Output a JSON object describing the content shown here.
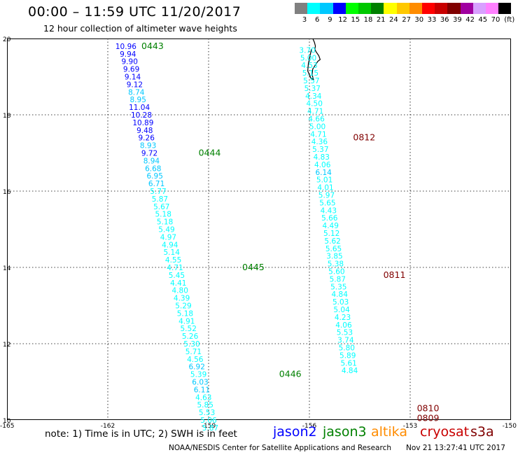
{
  "header": {
    "title": "00:00 – 11:59 UTC 11/20/2017",
    "subtitle": "12 hour collection of altimeter wave heights"
  },
  "color_scale": {
    "unit": "(ft)",
    "steps": [
      {
        "label": "3",
        "color": "#808080"
      },
      {
        "label": "6",
        "color": "#00ffff"
      },
      {
        "label": "9",
        "color": "#00c8ff"
      },
      {
        "label": "12",
        "color": "#0000ff"
      },
      {
        "label": "15",
        "color": "#00ff00"
      },
      {
        "label": "18",
        "color": "#00c800"
      },
      {
        "label": "21",
        "color": "#008000"
      },
      {
        "label": "24",
        "color": "#ffff00"
      },
      {
        "label": "27",
        "color": "#ffc800"
      },
      {
        "label": "30",
        "color": "#ff8c00"
      },
      {
        "label": "33",
        "color": "#ff0000"
      },
      {
        "label": "36",
        "color": "#c80000"
      },
      {
        "label": "39",
        "color": "#800000"
      },
      {
        "label": "42",
        "color": "#a000a0"
      },
      {
        "label": "45",
        "color": "#d8a0ff"
      },
      {
        "label": "70",
        "color": "#ff80ff"
      },
      {
        "label": "",
        "color": "#000000"
      }
    ]
  },
  "map": {
    "lon_min": -165,
    "lon_max": -150,
    "lat_min": 10,
    "lat_max": 20,
    "lat_ticks": [
      "20",
      "18",
      "16",
      "14",
      "12",
      "10"
    ],
    "lon_ticks": [
      "-165",
      "-162",
      "-159",
      "-156",
      "-153",
      "-150"
    ]
  },
  "tracks": [
    {
      "points": [
        {
          "lon": -161.46,
          "lat": 19.8,
          "v": "10.96",
          "c": "#0000ff"
        },
        {
          "lon": -161.4,
          "lat": 19.6,
          "v": "9.94",
          "c": "#0000ff"
        },
        {
          "lon": -161.35,
          "lat": 19.4,
          "v": "9.90",
          "c": "#0000ff"
        },
        {
          "lon": -161.3,
          "lat": 19.2,
          "v": "9.69",
          "c": "#0000ff"
        },
        {
          "lon": -161.26,
          "lat": 19.0,
          "v": "9.14",
          "c": "#0000ff"
        },
        {
          "lon": -161.2,
          "lat": 18.8,
          "v": "9.12",
          "c": "#0000ff"
        },
        {
          "lon": -161.15,
          "lat": 18.6,
          "v": "8.74",
          "c": "#00c8ff"
        },
        {
          "lon": -161.1,
          "lat": 18.4,
          "v": "8.95",
          "c": "#00c8ff"
        },
        {
          "lon": -161.06,
          "lat": 18.2,
          "v": "11.04",
          "c": "#0000ff"
        },
        {
          "lon": -161.0,
          "lat": 18.0,
          "v": "10.28",
          "c": "#0000ff"
        },
        {
          "lon": -160.95,
          "lat": 17.8,
          "v": "10.89",
          "c": "#0000ff"
        },
        {
          "lon": -160.9,
          "lat": 17.6,
          "v": "9.48",
          "c": "#0000ff"
        },
        {
          "lon": -160.85,
          "lat": 17.4,
          "v": "9.26",
          "c": "#0000ff"
        },
        {
          "lon": -160.8,
          "lat": 17.2,
          "v": "8.93",
          "c": "#00c8ff"
        },
        {
          "lon": -160.76,
          "lat": 17.0,
          "v": "9.72",
          "c": "#0000ff"
        },
        {
          "lon": -160.7,
          "lat": 16.8,
          "v": "8.94",
          "c": "#00c8ff"
        },
        {
          "lon": -160.65,
          "lat": 16.6,
          "v": "6.68",
          "c": "#00c8ff"
        },
        {
          "lon": -160.6,
          "lat": 16.4,
          "v": "6.95",
          "c": "#00c8ff"
        },
        {
          "lon": -160.55,
          "lat": 16.2,
          "v": "6.71",
          "c": "#00c8ff"
        },
        {
          "lon": -160.5,
          "lat": 16.0,
          "v": "5.77",
          "c": "#00ffff"
        },
        {
          "lon": -160.45,
          "lat": 15.8,
          "v": "5.87",
          "c": "#00ffff"
        },
        {
          "lon": -160.4,
          "lat": 15.6,
          "v": "5.67",
          "c": "#00ffff"
        },
        {
          "lon": -160.35,
          "lat": 15.4,
          "v": "5.18",
          "c": "#00ffff"
        },
        {
          "lon": -160.3,
          "lat": 15.2,
          "v": "5.18",
          "c": "#00ffff"
        },
        {
          "lon": -160.25,
          "lat": 15.0,
          "v": "5.49",
          "c": "#00ffff"
        },
        {
          "lon": -160.2,
          "lat": 14.8,
          "v": "4.97",
          "c": "#00ffff"
        },
        {
          "lon": -160.15,
          "lat": 14.6,
          "v": "4.94",
          "c": "#00ffff"
        },
        {
          "lon": -160.1,
          "lat": 14.4,
          "v": "5.14",
          "c": "#00ffff"
        },
        {
          "lon": -160.05,
          "lat": 14.2,
          "v": "4.55",
          "c": "#00ffff"
        },
        {
          "lon": -160.0,
          "lat": 14.0,
          "v": "4.71",
          "c": "#00ffff"
        },
        {
          "lon": -159.95,
          "lat": 13.8,
          "v": "5.45",
          "c": "#00ffff"
        },
        {
          "lon": -159.9,
          "lat": 13.6,
          "v": "4.41",
          "c": "#00ffff"
        },
        {
          "lon": -159.85,
          "lat": 13.4,
          "v": "4.80",
          "c": "#00ffff"
        },
        {
          "lon": -159.8,
          "lat": 13.2,
          "v": "4.39",
          "c": "#00ffff"
        },
        {
          "lon": -159.75,
          "lat": 13.0,
          "v": "5.29",
          "c": "#00ffff"
        },
        {
          "lon": -159.7,
          "lat": 12.8,
          "v": "5.18",
          "c": "#00ffff"
        },
        {
          "lon": -159.65,
          "lat": 12.6,
          "v": "4.91",
          "c": "#00ffff"
        },
        {
          "lon": -159.6,
          "lat": 12.4,
          "v": "5.52",
          "c": "#00ffff"
        },
        {
          "lon": -159.55,
          "lat": 12.2,
          "v": "5.26",
          "c": "#00ffff"
        },
        {
          "lon": -159.5,
          "lat": 12.0,
          "v": "5.30",
          "c": "#00ffff"
        },
        {
          "lon": -159.45,
          "lat": 11.8,
          "v": "5.71",
          "c": "#00ffff"
        },
        {
          "lon": -159.4,
          "lat": 11.6,
          "v": "4.56",
          "c": "#00ffff"
        },
        {
          "lon": -159.35,
          "lat": 11.4,
          "v": "6.92",
          "c": "#00c8ff"
        },
        {
          "lon": -159.3,
          "lat": 11.2,
          "v": "5.39",
          "c": "#00ffff"
        },
        {
          "lon": -159.25,
          "lat": 11.0,
          "v": "6.03",
          "c": "#00c8ff"
        },
        {
          "lon": -159.2,
          "lat": 10.8,
          "v": "6.11",
          "c": "#00c8ff"
        },
        {
          "lon": -159.15,
          "lat": 10.6,
          "v": "4.63",
          "c": "#00ffff"
        },
        {
          "lon": -159.1,
          "lat": 10.4,
          "v": "5.85",
          "c": "#00ffff"
        },
        {
          "lon": -159.05,
          "lat": 10.2,
          "v": "5.53",
          "c": "#00ffff"
        },
        {
          "lon": -159.0,
          "lat": 10.0,
          "v": "5.06",
          "c": "#00ffff"
        },
        {
          "lon": -158.95,
          "lat": 9.8,
          "v": "5.87",
          "c": "#00ffff"
        }
      ],
      "labels": [
        {
          "text": "0443",
          "lon": -161.0,
          "lat": 19.8,
          "c": "#008000"
        },
        {
          "text": "0444",
          "lon": -159.3,
          "lat": 17.0,
          "c": "#008000"
        },
        {
          "text": "0445",
          "lon": -158.0,
          "lat": 14.0,
          "c": "#008000"
        },
        {
          "text": "0446",
          "lon": -156.9,
          "lat": 11.2,
          "c": "#008000"
        }
      ]
    },
    {
      "points": [
        {
          "lon": -156.06,
          "lat": 19.7,
          "v": "3.70",
          "c": "#00ffff"
        },
        {
          "lon": -156.03,
          "lat": 19.5,
          "v": "5.00",
          "c": "#00ffff"
        },
        {
          "lon": -156.0,
          "lat": 19.3,
          "v": "4.53",
          "c": "#00ffff"
        },
        {
          "lon": -155.97,
          "lat": 19.1,
          "v": "5.15",
          "c": "#00ffff"
        },
        {
          "lon": -155.94,
          "lat": 18.9,
          "v": "5.57",
          "c": "#00ffff"
        },
        {
          "lon": -155.91,
          "lat": 18.7,
          "v": "5.37",
          "c": "#00ffff"
        },
        {
          "lon": -155.88,
          "lat": 18.5,
          "v": "4.34",
          "c": "#00ffff"
        },
        {
          "lon": -155.85,
          "lat": 18.3,
          "v": "4.50",
          "c": "#00ffff"
        },
        {
          "lon": -155.82,
          "lat": 18.1,
          "v": "4.71",
          "c": "#00ffff"
        },
        {
          "lon": -155.79,
          "lat": 17.9,
          "v": "4.66",
          "c": "#00ffff"
        },
        {
          "lon": -155.76,
          "lat": 17.7,
          "v": "5.00",
          "c": "#00ffff"
        },
        {
          "lon": -155.73,
          "lat": 17.5,
          "v": "4.71",
          "c": "#00ffff"
        },
        {
          "lon": -155.7,
          "lat": 17.3,
          "v": "4.36",
          "c": "#00ffff"
        },
        {
          "lon": -155.67,
          "lat": 17.1,
          "v": "5.37",
          "c": "#00ffff"
        },
        {
          "lon": -155.64,
          "lat": 16.9,
          "v": "4.83",
          "c": "#00ffff"
        },
        {
          "lon": -155.61,
          "lat": 16.7,
          "v": "4.06",
          "c": "#00ffff"
        },
        {
          "lon": -155.58,
          "lat": 16.5,
          "v": "6.14",
          "c": "#00c8ff"
        },
        {
          "lon": -155.55,
          "lat": 16.3,
          "v": "5.01",
          "c": "#00ffff"
        },
        {
          "lon": -155.52,
          "lat": 16.1,
          "v": "4.01",
          "c": "#00ffff"
        },
        {
          "lon": -155.49,
          "lat": 15.9,
          "v": "5.97",
          "c": "#00ffff"
        },
        {
          "lon": -155.46,
          "lat": 15.7,
          "v": "5.65",
          "c": "#00ffff"
        },
        {
          "lon": -155.43,
          "lat": 15.5,
          "v": "4.43",
          "c": "#00ffff"
        },
        {
          "lon": -155.4,
          "lat": 15.3,
          "v": "5.66",
          "c": "#00ffff"
        },
        {
          "lon": -155.37,
          "lat": 15.1,
          "v": "4.49",
          "c": "#00ffff"
        },
        {
          "lon": -155.34,
          "lat": 14.9,
          "v": "5.12",
          "c": "#00ffff"
        },
        {
          "lon": -155.31,
          "lat": 14.7,
          "v": "5.62",
          "c": "#00ffff"
        },
        {
          "lon": -155.28,
          "lat": 14.5,
          "v": "5.65",
          "c": "#00ffff"
        },
        {
          "lon": -155.25,
          "lat": 14.3,
          "v": "3.85",
          "c": "#00ffff"
        },
        {
          "lon": -155.22,
          "lat": 14.1,
          "v": "5.38",
          "c": "#00ffff"
        },
        {
          "lon": -155.19,
          "lat": 13.9,
          "v": "5.60",
          "c": "#00ffff"
        },
        {
          "lon": -155.16,
          "lat": 13.7,
          "v": "5.87",
          "c": "#00ffff"
        },
        {
          "lon": -155.13,
          "lat": 13.5,
          "v": "5.35",
          "c": "#00ffff"
        },
        {
          "lon": -155.1,
          "lat": 13.3,
          "v": "4.84",
          "c": "#00ffff"
        },
        {
          "lon": -155.07,
          "lat": 13.1,
          "v": "5.03",
          "c": "#00ffff"
        },
        {
          "lon": -155.04,
          "lat": 12.9,
          "v": "5.04",
          "c": "#00ffff"
        },
        {
          "lon": -155.01,
          "lat": 12.7,
          "v": "4.23",
          "c": "#00ffff"
        },
        {
          "lon": -154.98,
          "lat": 12.5,
          "v": "4.06",
          "c": "#00ffff"
        },
        {
          "lon": -154.95,
          "lat": 12.3,
          "v": "5.53",
          "c": "#00ffff"
        },
        {
          "lon": -154.92,
          "lat": 12.1,
          "v": "3.74",
          "c": "#00ffff"
        },
        {
          "lon": -154.89,
          "lat": 11.9,
          "v": "5.80",
          "c": "#00ffff"
        },
        {
          "lon": -154.86,
          "lat": 11.7,
          "v": "5.89",
          "c": "#00ffff"
        },
        {
          "lon": -154.83,
          "lat": 11.5,
          "v": "5.61",
          "c": "#00ffff"
        },
        {
          "lon": -154.8,
          "lat": 11.3,
          "v": "4.84",
          "c": "#00ffff"
        }
      ],
      "labels": [
        {
          "text": "0812",
          "lon": -154.7,
          "lat": 17.4,
          "c": "#800000"
        },
        {
          "text": "0811",
          "lon": -153.8,
          "lat": 13.8,
          "c": "#800000"
        },
        {
          "text": "0810",
          "lon": -152.8,
          "lat": 10.3,
          "c": "#800000"
        },
        {
          "text": "0809",
          "lon": -152.8,
          "lat": 10.05,
          "c": "#800000"
        }
      ]
    }
  ],
  "note": "note: 1) Time is in UTC; 2) SWH is in feet",
  "missions": [
    {
      "name": "jason2",
      "color": "#0000ff"
    },
    {
      "name": "jason3",
      "color": "#008000"
    },
    {
      "name": "altika",
      "color": "#ff8c00"
    },
    {
      "name": "cryosat",
      "color": "#c80000"
    },
    {
      "name": "s3a",
      "color": "#800000"
    }
  ],
  "credit": "NOAA/NESDIS Center for Satellite Applications and Research",
  "timestamp": "Nov 21 13:27:41 UTC 2017"
}
